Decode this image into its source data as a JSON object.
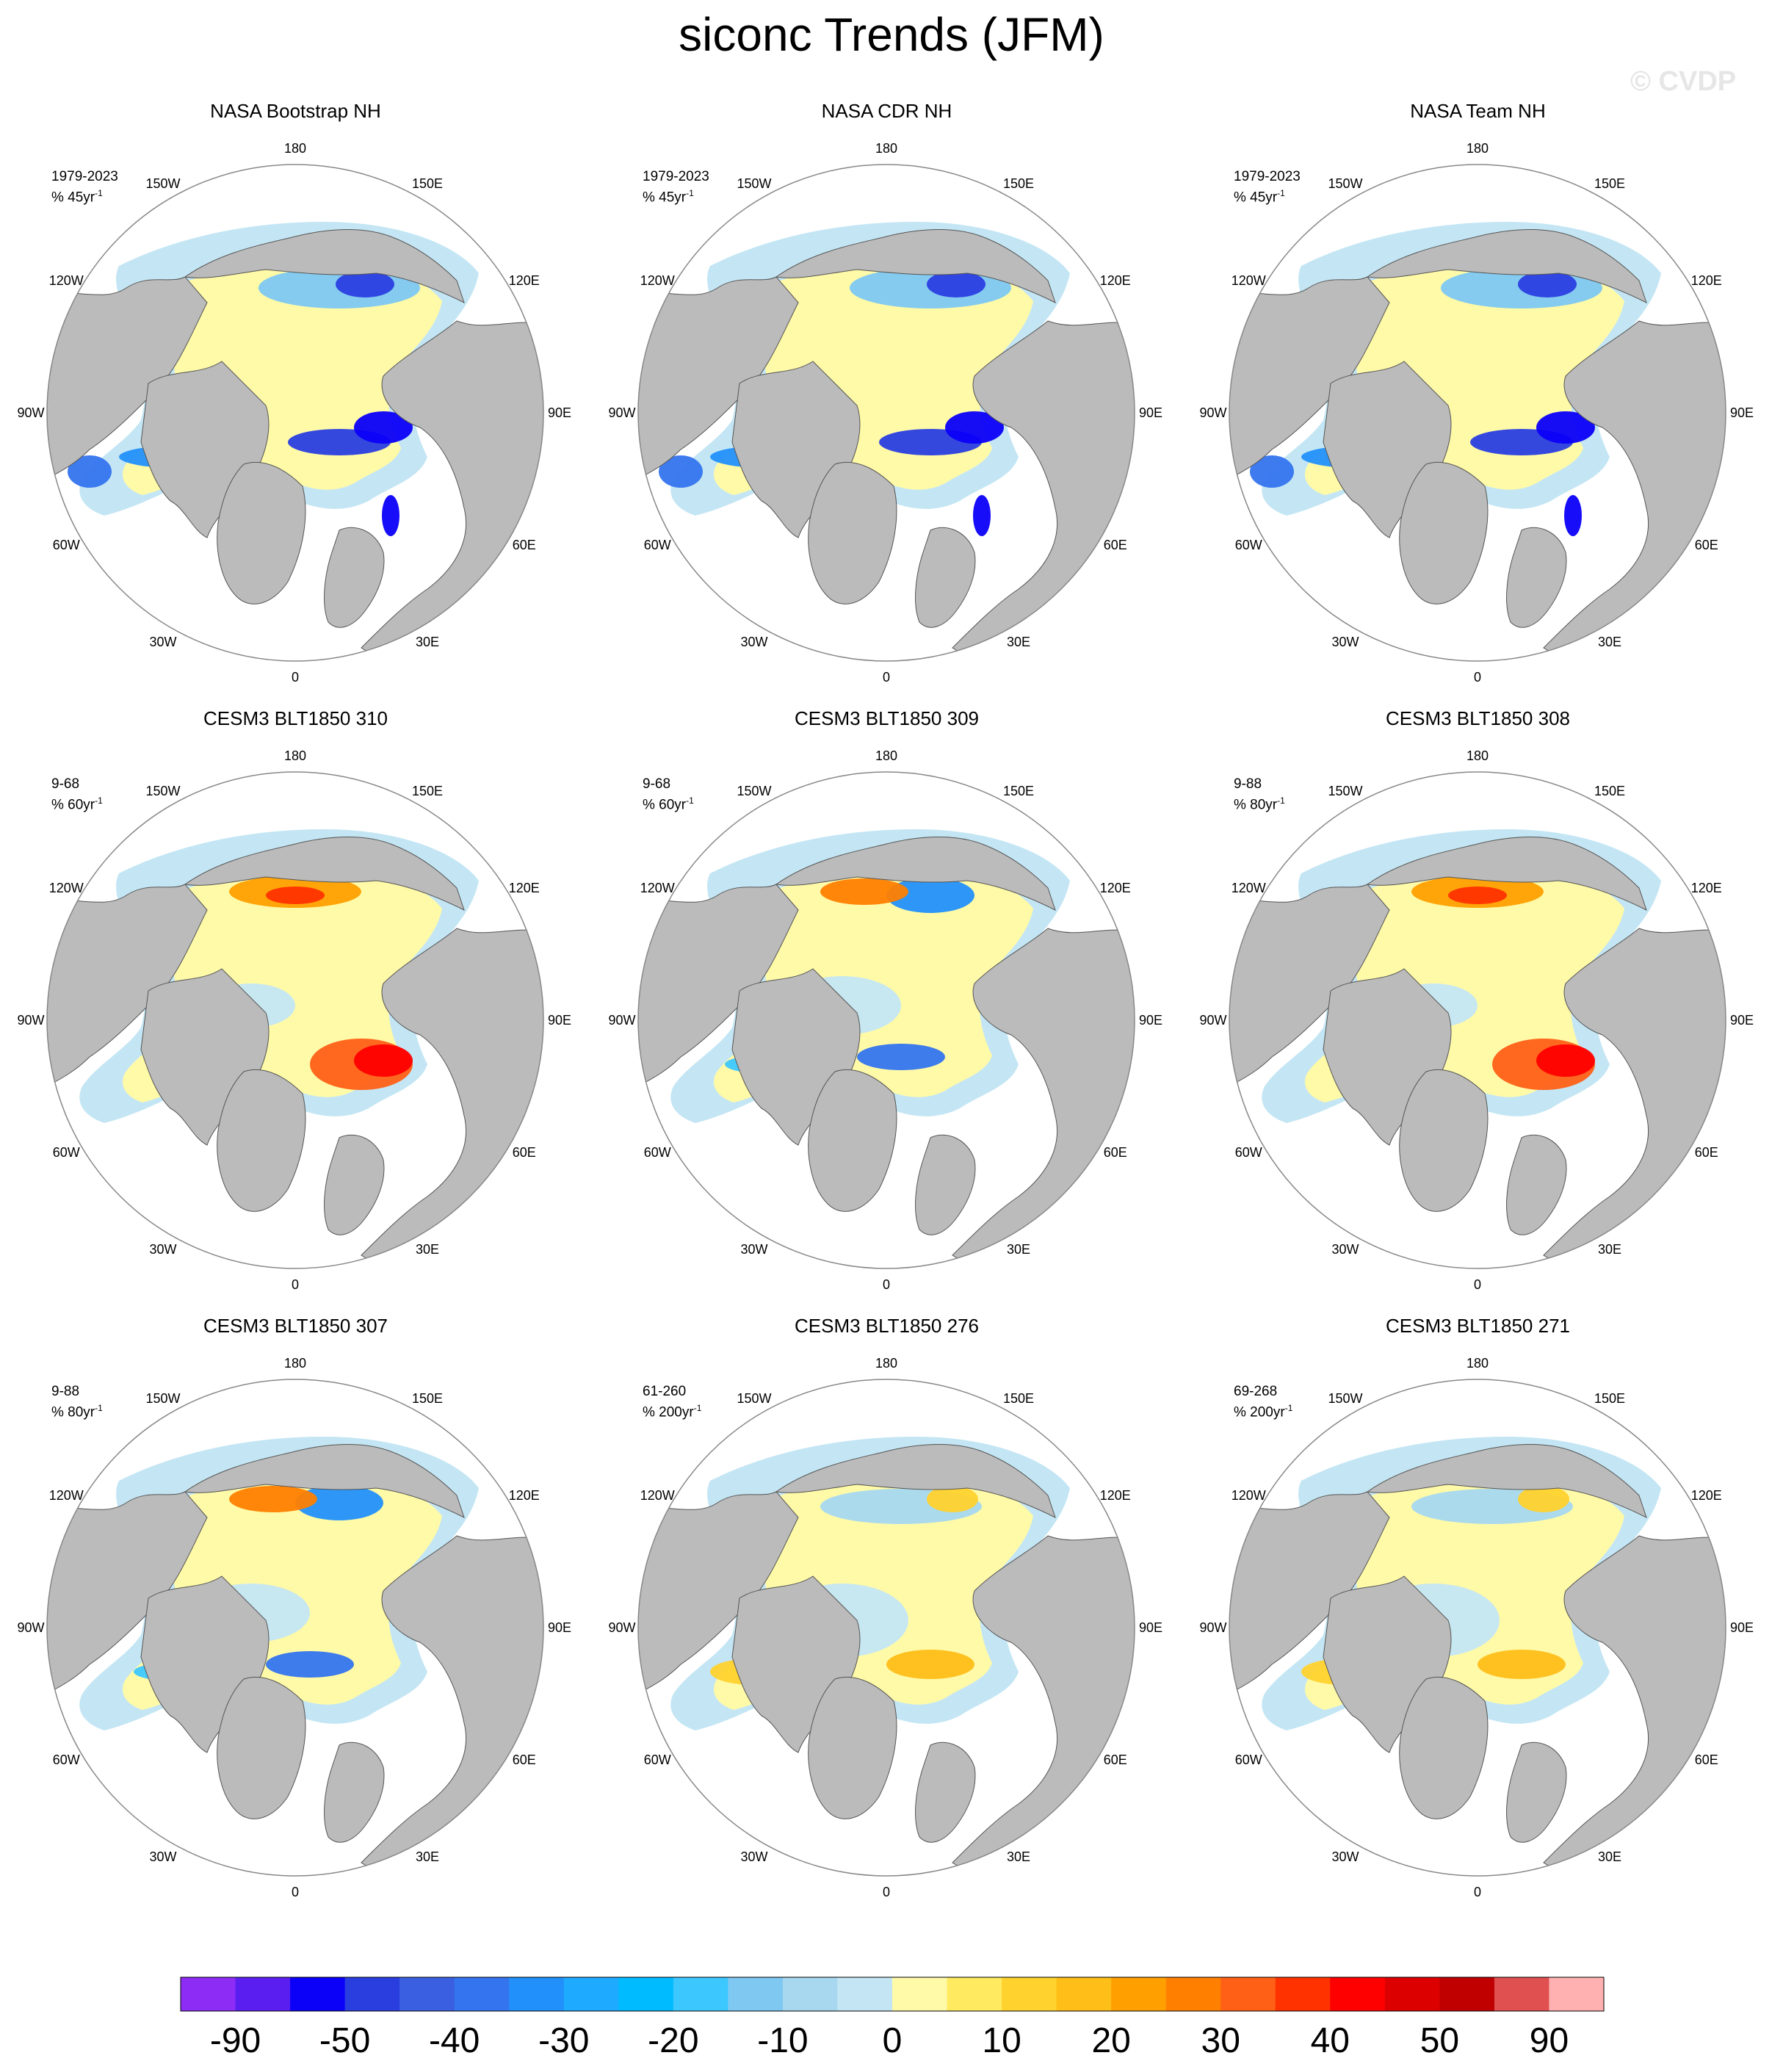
{
  "title": "siconc Trends (JFM)",
  "watermark": "© CVDP",
  "lon_labels": [
    "180",
    "150E",
    "120E",
    "90E",
    "60E",
    "30E",
    "0",
    "30W",
    "60W",
    "90W",
    "120W",
    "150W"
  ],
  "panels": [
    {
      "title": "NASA Bootstrap NH",
      "stat1": "1979-2023",
      "stat2": "% 45yr",
      "unit_exp": "-1",
      "pattern": "obs"
    },
    {
      "title": "NASA CDR NH",
      "stat1": "1979-2023",
      "stat2": "% 45yr",
      "unit_exp": "-1",
      "pattern": "obs"
    },
    {
      "title": "NASA Team NH",
      "stat1": "1979-2023",
      "stat2": "% 45yr",
      "unit_exp": "-1",
      "pattern": "obs"
    },
    {
      "title": "CESM3 BLT1850 310",
      "stat1": "9-68",
      "stat2": "% 60yr",
      "unit_exp": "-1",
      "pattern": "warm-barents"
    },
    {
      "title": "CESM3 BLT1850 309",
      "stat1": "9-68",
      "stat2": "% 60yr",
      "unit_exp": "-1",
      "pattern": "mixed-blue"
    },
    {
      "title": "CESM3 BLT1850 308",
      "stat1": "9-88",
      "stat2": "% 80yr",
      "unit_exp": "-1",
      "pattern": "warm-barents"
    },
    {
      "title": "CESM3 BLT1850 307",
      "stat1": "9-88",
      "stat2": "% 80yr",
      "unit_exp": "-1",
      "pattern": "mixed-blue"
    },
    {
      "title": "CESM3 BLT1850 276",
      "stat1": "61-260",
      "stat2": "% 200yr",
      "unit_exp": "-1",
      "pattern": "mild-warm"
    },
    {
      "title": "CESM3 BLT1850 271",
      "stat1": "69-268",
      "stat2": "% 200yr",
      "unit_exp": "-1",
      "pattern": "mild-warm"
    }
  ],
  "colorbar": {
    "colors": [
      "#8d2cf5",
      "#5a1ff0",
      "#0b00f8",
      "#2a3ee0",
      "#3a5fe0",
      "#3474ee",
      "#2290fa",
      "#1eaaff",
      "#00bbff",
      "#3cc8ff",
      "#7ec8f2",
      "#a8d8f0",
      "#c4e6f4",
      "#fffaa8",
      "#ffea60",
      "#ffd22e",
      "#ffbe18",
      "#ffa000",
      "#ff8000",
      "#ff6016",
      "#ff3200",
      "#ff0000",
      "#dd0000",
      "#c00000",
      "#e05050",
      "#ffb0b0"
    ],
    "labels": [
      "-90",
      "-50",
      "-40",
      "-30",
      "-20",
      "-10",
      "0",
      "10",
      "20",
      "30",
      "40",
      "50",
      "90"
    ]
  }
}
